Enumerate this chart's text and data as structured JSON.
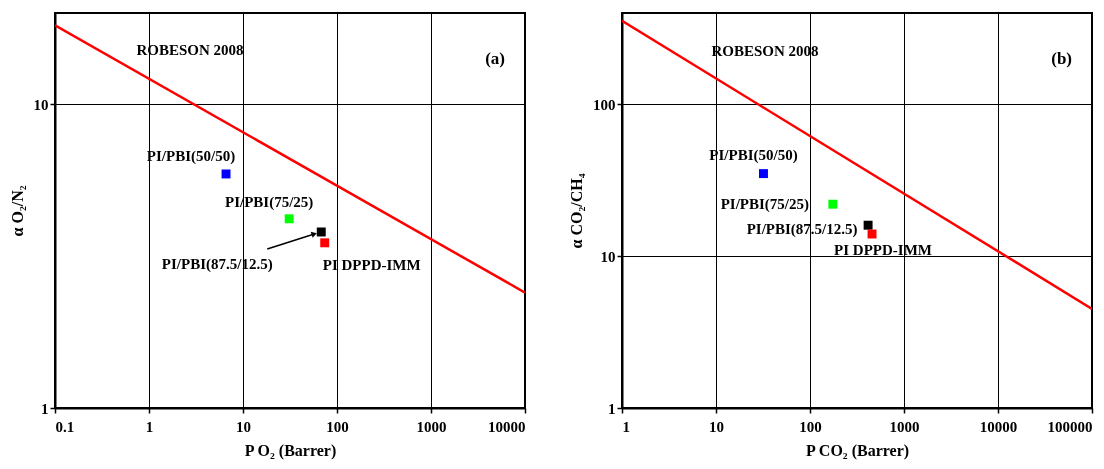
{
  "chart_data": [
    {
      "type": "scatter",
      "xlabel": "P O₂ (Barrer)",
      "ylabel": "α O₂/N₂",
      "log": "xy",
      "grid": true,
      "marker": "square",
      "xlim": [
        0.1,
        10000
      ],
      "ylim": [
        1,
        20
      ],
      "xticks": [
        0.1,
        1,
        10,
        100,
        1000,
        10000
      ],
      "yticks": [
        1,
        10
      ],
      "series": [
        {
          "type": "line",
          "name": "ROBESON 2008",
          "marker": "none",
          "color": "#ff0000",
          "x": [
            0.1,
            10000
          ],
          "values": [
            18.2,
            2.4
          ]
        },
        {
          "name": "PI/PBI(50/50)",
          "color": "#0000ff",
          "x": [
            6.6
          ],
          "values": [
            5.9
          ]
        },
        {
          "name": "PI/PBI(75/25)",
          "color": "#00ff00",
          "x": [
            31
          ],
          "values": [
            4.2
          ]
        },
        {
          "name": "PI/PBI(87.5/12.5)",
          "color": "#000000",
          "x": [
            68
          ],
          "values": [
            3.8
          ]
        },
        {
          "name": "PI DPPD-IMM",
          "color": "#ff0000",
          "x": [
            74
          ],
          "values": [
            3.5
          ]
        }
      ],
      "annotations": [
        "(a)"
      ]
    },
    {
      "type": "scatter",
      "xlabel": "P CO₂ (Barrer)",
      "ylabel": "α CO₂/CH₄",
      "log": "xy",
      "grid": true,
      "marker": "square",
      "xlim": [
        1,
        100000
      ],
      "ylim": [
        1,
        400
      ],
      "xticks": [
        1,
        10,
        100,
        1000,
        10000,
        100000
      ],
      "yticks": [
        1,
        10,
        100
      ],
      "series": [
        {
          "type": "line",
          "name": "ROBESON 2008",
          "marker": "none",
          "color": "#ff0000",
          "x": [
            1,
            100000
          ],
          "values": [
            355,
            4.5
          ]
        },
        {
          "name": "PI/PBI(50/50)",
          "color": "#0000ff",
          "x": [
            32
          ],
          "values": [
            35
          ]
        },
        {
          "name": "PI/PBI(75/25)",
          "color": "#00ff00",
          "x": [
            175
          ],
          "values": [
            22
          ]
        },
        {
          "name": "PI/PBI(87.5/12.5)",
          "color": "#000000",
          "x": [
            415
          ],
          "values": [
            16
          ]
        },
        {
          "name": "PI DPPD-IMM",
          "color": "#ff0000",
          "x": [
            457
          ],
          "values": [
            14
          ]
        }
      ],
      "annotations": [
        "(b)"
      ]
    }
  ]
}
